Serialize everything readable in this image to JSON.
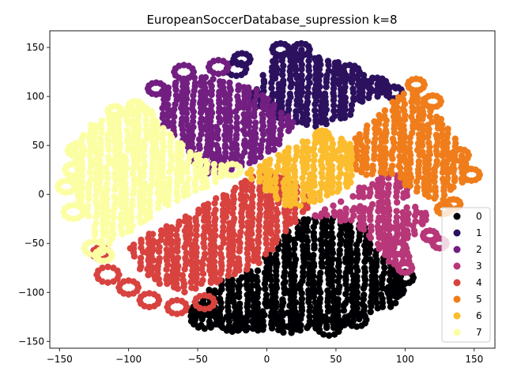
{
  "chart_data": {
    "type": "scatter",
    "title": "EuropeanSoccerDatabase_supression k=8",
    "xlabel": "",
    "ylabel": "",
    "xlim": [
      -157,
      165
    ],
    "ylim": [
      -157,
      167
    ],
    "xticks": [
      -150,
      -100,
      -50,
      0,
      50,
      100,
      150
    ],
    "yticks": [
      -150,
      -100,
      -50,
      0,
      50,
      100,
      150
    ],
    "grid": false,
    "legend_position": "lower-right",
    "series": [
      {
        "name": "0",
        "color": "#000004",
        "regions": [
          [
            [
              -55,
              -115
            ],
            [
              -35,
              -88
            ],
            [
              -5,
              -75
            ],
            [
              0,
              -60
            ],
            [
              12,
              -40
            ],
            [
              20,
              -28
            ],
            [
              35,
              -22
            ],
            [
              60,
              -25
            ],
            [
              72,
              -32
            ],
            [
              80,
              -60
            ],
            [
              100,
              -78
            ],
            [
              95,
              -112
            ],
            [
              70,
              -125
            ],
            [
              50,
              -140
            ],
            [
              20,
              -142
            ],
            [
              -10,
              -140
            ],
            [
              -45,
              -135
            ],
            [
              -60,
              -130
            ]
          ]
        ],
        "blobs": [
          [
            -45,
            -128,
            9
          ],
          [
            -25,
            -132,
            8
          ],
          [
            -10,
            -130,
            7
          ],
          [
            15,
            -128,
            7
          ],
          [
            45,
            -136,
            8
          ],
          [
            65,
            -128,
            7
          ],
          [
            93,
            -98,
            6
          ],
          [
            100,
            -85,
            6
          ],
          [
            -48,
            -118,
            6
          ]
        ]
      },
      {
        "name": "1",
        "color": "#2c115f",
        "regions": [
          [
            [
              -15,
              95
            ],
            [
              -5,
              115
            ],
            [
              0,
              130
            ],
            [
              8,
              145
            ],
            [
              20,
              150
            ],
            [
              40,
              142
            ],
            [
              60,
              132
            ],
            [
              80,
              118
            ],
            [
              95,
              108
            ],
            [
              90,
              100
            ],
            [
              70,
              95
            ],
            [
              60,
              80
            ],
            [
              40,
              70
            ],
            [
              25,
              68
            ],
            [
              10,
              72
            ],
            [
              0,
              85
            ]
          ]
        ],
        "blobs": [
          [
            -22,
            128,
            7
          ],
          [
            -18,
            138,
            6
          ],
          [
            10,
            148,
            6
          ],
          [
            25,
            148,
            6
          ],
          [
            60,
            125,
            7
          ],
          [
            80,
            112,
            7
          ],
          [
            92,
            104,
            6
          ]
        ]
      },
      {
        "name": "2",
        "color": "#721f81",
        "regions": [
          [
            [
              -75,
              110
            ],
            [
              -55,
              122
            ],
            [
              -30,
              118
            ],
            [
              -10,
              112
            ],
            [
              0,
              100
            ],
            [
              10,
              88
            ],
            [
              20,
              75
            ],
            [
              15,
              60
            ],
            [
              5,
              45
            ],
            [
              -5,
              35
            ],
            [
              -25,
              25
            ],
            [
              -45,
              20
            ],
            [
              -60,
              45
            ],
            [
              -75,
              70
            ],
            [
              -80,
              95
            ]
          ]
        ],
        "blobs": [
          [
            -60,
            125,
            7
          ],
          [
            -35,
            130,
            7
          ],
          [
            -80,
            108,
            6
          ],
          [
            -40,
            35,
            7
          ]
        ]
      },
      {
        "name": "3",
        "color": "#b73779",
        "regions": [
          [
            [
              35,
              -22
            ],
            [
              55,
              -15
            ],
            [
              70,
              -10
            ],
            [
              85,
              -5
            ],
            [
              95,
              -15
            ],
            [
              110,
              -10
            ],
            [
              118,
              -25
            ],
            [
              110,
              -40
            ],
            [
              100,
              -50
            ],
            [
              105,
              -70
            ],
            [
              90,
              -72
            ],
            [
              80,
              -60
            ],
            [
              72,
              -40
            ],
            [
              55,
              -28
            ]
          ],
          [
            [
              30,
              -25
            ],
            [
              45,
              -20
            ],
            [
              60,
              0
            ],
            [
              75,
              15
            ],
            [
              88,
              25
            ],
            [
              100,
              15
            ],
            [
              105,
              0
            ],
            [
              95,
              -10
            ],
            [
              75,
              -5
            ],
            [
              55,
              -5
            ]
          ]
        ],
        "blobs": [
          [
            88,
            -40,
            7
          ],
          [
            95,
            -55,
            6
          ],
          [
            118,
            -42,
            5
          ],
          [
            100,
            -75,
            5
          ],
          [
            125,
            -50,
            5
          ]
        ]
      },
      {
        "name": "4",
        "color": "#d8433f",
        "regions": [
          [
            [
              -100,
              -55
            ],
            [
              -85,
              -40
            ],
            [
              -70,
              -30
            ],
            [
              -55,
              -18
            ],
            [
              -40,
              -5
            ],
            [
              -25,
              5
            ],
            [
              -15,
              15
            ],
            [
              0,
              25
            ],
            [
              15,
              18
            ],
            [
              25,
              8
            ],
            [
              35,
              -5
            ],
            [
              30,
              -20
            ],
            [
              15,
              -35
            ],
            [
              5,
              -55
            ],
            [
              -5,
              -70
            ],
            [
              -25,
              -85
            ],
            [
              -40,
              -95
            ],
            [
              -60,
              -100
            ],
            [
              -80,
              -90
            ],
            [
              -95,
              -75
            ]
          ]
        ],
        "blobs": [
          [
            -115,
            -82,
            8
          ],
          [
            -100,
            -95,
            7
          ],
          [
            -85,
            -108,
            7
          ],
          [
            -65,
            -115,
            7
          ],
          [
            -45,
            -110,
            7
          ],
          [
            -120,
            -60,
            6
          ]
        ]
      },
      {
        "name": "5",
        "color": "#f07d1b",
        "regions": [
          [
            [
              65,
              60
            ],
            [
              80,
              80
            ],
            [
              95,
              100
            ],
            [
              105,
              110
            ],
            [
              115,
              100
            ],
            [
              125,
              80
            ],
            [
              135,
              60
            ],
            [
              145,
              35
            ],
            [
              145,
              15
            ],
            [
              135,
              5
            ],
            [
              125,
              -10
            ],
            [
              118,
              -5
            ],
            [
              105,
              5
            ],
            [
              90,
              18
            ],
            [
              70,
              20
            ],
            [
              60,
              30
            ],
            [
              55,
              45
            ]
          ]
        ],
        "blobs": [
          [
            108,
            112,
            6
          ],
          [
            120,
            95,
            6
          ],
          [
            140,
            40,
            6
          ],
          [
            148,
            20,
            6
          ],
          [
            135,
            -10,
            5
          ],
          [
            128,
            -15,
            5
          ]
        ]
      },
      {
        "name": "6",
        "color": "#fbbd2e",
        "regions": [
          [
            [
              -15,
              25
            ],
            [
              0,
              38
            ],
            [
              15,
              48
            ],
            [
              30,
              58
            ],
            [
              45,
              62
            ],
            [
              60,
              55
            ],
            [
              65,
              40
            ],
            [
              65,
              20
            ],
            [
              58,
              5
            ],
            [
              45,
              -2
            ],
            [
              35,
              -8
            ],
            [
              25,
              -15
            ],
            [
              10,
              -10
            ],
            [
              0,
              0
            ],
            [
              -10,
              10
            ]
          ]
        ],
        "blobs": [
          [
            40,
            60,
            5
          ],
          [
            55,
            40,
            6
          ]
        ]
      },
      {
        "name": "7",
        "color": "#fcfea4",
        "regions": [
          [
            [
              -132,
              68
            ],
            [
              -115,
              80
            ],
            [
              -100,
              92
            ],
            [
              -85,
              88
            ],
            [
              -75,
              70
            ],
            [
              -65,
              55
            ],
            [
              -50,
              42
            ],
            [
              -35,
              32
            ],
            [
              -25,
              22
            ],
            [
              -35,
              12
            ],
            [
              -45,
              5
            ],
            [
              -60,
              -5
            ],
            [
              -75,
              -15
            ],
            [
              -90,
              -30
            ],
            [
              -105,
              -45
            ],
            [
              -120,
              -55
            ],
            [
              -125,
              -40
            ],
            [
              -130,
              -20
            ],
            [
              -138,
              -5
            ],
            [
              -142,
              15
            ],
            [
              -140,
              35
            ],
            [
              -142,
              50
            ]
          ]
        ],
        "blobs": [
          [
            -138,
            45,
            6
          ],
          [
            -140,
            25,
            6
          ],
          [
            -145,
            8,
            6
          ],
          [
            -140,
            -18,
            7
          ],
          [
            -125,
            -55,
            7
          ],
          [
            -118,
            -62,
            6
          ],
          [
            -95,
            90,
            5
          ],
          [
            -110,
            85,
            5
          ],
          [
            -25,
            25,
            6
          ]
        ]
      }
    ]
  }
}
